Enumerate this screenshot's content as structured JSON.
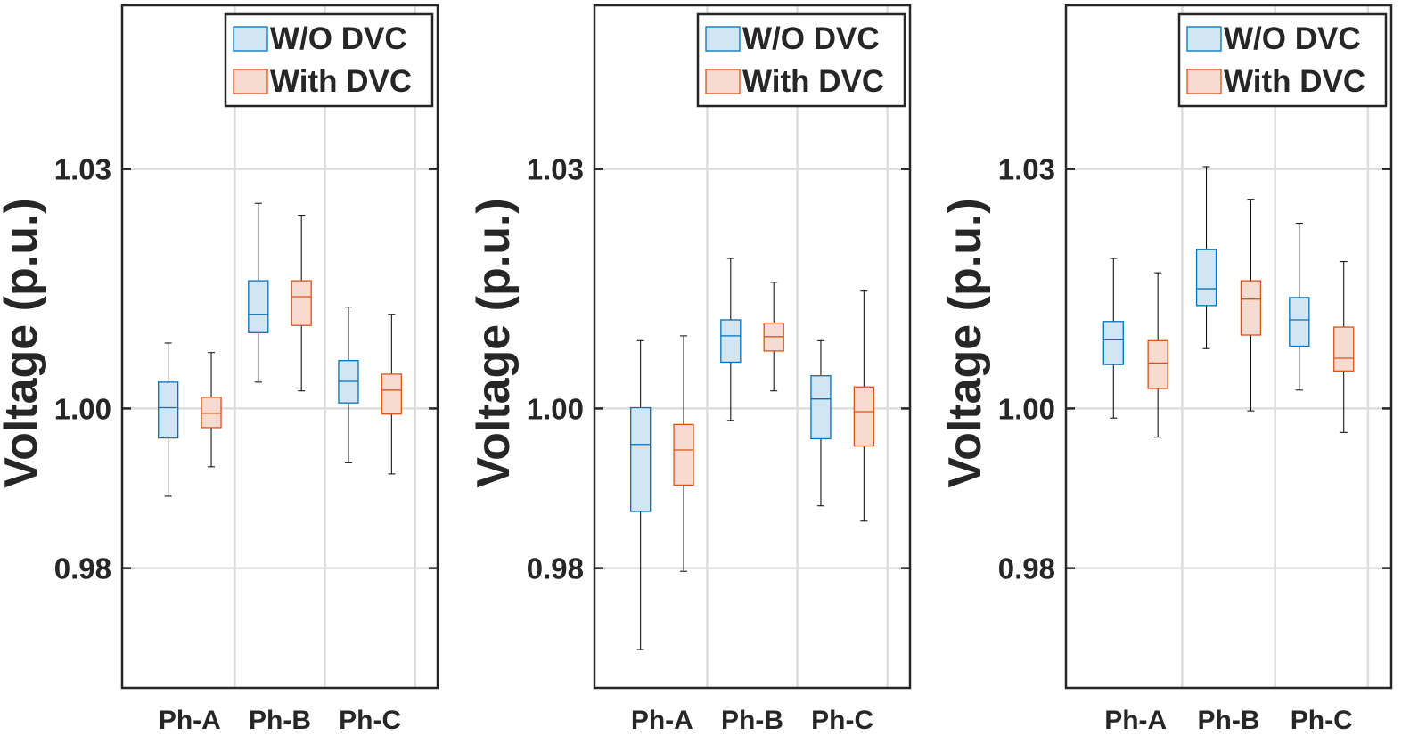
{
  "chart_data": [
    {
      "type": "box",
      "ylabel": "Voltage (p.u.)",
      "ylim": [
        0.965,
        1.0505
      ],
      "yticks": [
        0.98,
        1.0,
        1.03
      ],
      "ytick_labels": [
        "0.98",
        "1.00",
        "1.03"
      ],
      "categories": [
        "Ph-A",
        "Ph-B",
        "Ph-C"
      ],
      "grid": true,
      "legend": {
        "placement": "top-right",
        "entries": [
          "W/O DVC",
          "With DVC"
        ]
      },
      "series": [
        {
          "name": "W/O DVC",
          "boxes": [
            {
              "category": "Ph-A",
              "min": 0.989,
              "q1": 0.9963,
              "median": 1.0001,
              "q3": 1.0033,
              "max": 1.0082
            },
            {
              "category": "Ph-B",
              "min": 1.0033,
              "q1": 1.0095,
              "median": 1.0118,
              "q3": 1.016,
              "max": 1.0257
            },
            {
              "category": "Ph-C",
              "min": 0.9932,
              "q1": 1.0007,
              "median": 1.0034,
              "q3": 1.006,
              "max": 1.0127
            }
          ]
        },
        {
          "name": "With DVC",
          "boxes": [
            {
              "category": "Ph-A",
              "min": 0.9927,
              "q1": 0.9976,
              "median": 0.9994,
              "q3": 1.0014,
              "max": 1.007
            },
            {
              "category": "Ph-B",
              "min": 1.0022,
              "q1": 1.0104,
              "median": 1.014,
              "q3": 1.016,
              "max": 1.0242
            },
            {
              "category": "Ph-C",
              "min": 0.9918,
              "q1": 0.9993,
              "median": 1.0023,
              "q3": 1.0043,
              "max": 1.0118
            }
          ]
        }
      ]
    },
    {
      "type": "box",
      "ylabel": "Voltage (p.u.)",
      "ylim": [
        0.965,
        1.0505
      ],
      "yticks": [
        0.98,
        1.0,
        1.03
      ],
      "ytick_labels": [
        "0.98",
        "1.00",
        "1.03"
      ],
      "categories": [
        "Ph-A",
        "Ph-B",
        "Ph-C"
      ],
      "grid": true,
      "legend": {
        "placement": "top-right",
        "entries": [
          "W/O DVC",
          "With DVC"
        ]
      },
      "series": [
        {
          "name": "W/O DVC",
          "boxes": [
            {
              "category": "Ph-A",
              "min": 0.9698,
              "q1": 0.9871,
              "median": 0.9955,
              "q3": 1.0001,
              "max": 1.0085
            },
            {
              "category": "Ph-B",
              "min": 0.9985,
              "q1": 1.0058,
              "median": 1.0091,
              "q3": 1.0111,
              "max": 1.0188
            },
            {
              "category": "Ph-C",
              "min": 0.9878,
              "q1": 0.9962,
              "median": 1.0012,
              "q3": 1.0041,
              "max": 1.0085
            }
          ]
        },
        {
          "name": "With DVC",
          "boxes": [
            {
              "category": "Ph-A",
              "min": 0.9796,
              "q1": 0.9904,
              "median": 0.9948,
              "q3": 0.998,
              "max": 1.0091
            },
            {
              "category": "Ph-B",
              "min": 1.0022,
              "q1": 1.0072,
              "median": 1.009,
              "q3": 1.0107,
              "max": 1.0158
            },
            {
              "category": "Ph-C",
              "min": 0.9859,
              "q1": 0.9953,
              "median": 0.9996,
              "q3": 1.0027,
              "max": 1.0147
            }
          ]
        }
      ]
    },
    {
      "type": "box",
      "ylabel": "Voltage (p.u.)",
      "ylim": [
        0.965,
        1.0505
      ],
      "yticks": [
        0.98,
        1.0,
        1.03
      ],
      "ytick_labels": [
        "0.98",
        "1.00",
        "1.03"
      ],
      "categories": [
        "Ph-A",
        "Ph-B",
        "Ph-C"
      ],
      "grid": true,
      "legend": {
        "placement": "top-right",
        "entries": [
          "W/O DVC",
          "With DVC"
        ]
      },
      "series": [
        {
          "name": "W/O DVC",
          "boxes": [
            {
              "category": "Ph-A",
              "min": 0.9988,
              "q1": 1.0055,
              "median": 1.0086,
              "q3": 1.0109,
              "max": 1.0188
            },
            {
              "category": "Ph-B",
              "min": 1.0075,
              "q1": 1.0129,
              "median": 1.015,
              "q3": 1.0199,
              "max": 1.0303
            },
            {
              "category": "Ph-C",
              "min": 1.0023,
              "q1": 1.0078,
              "median": 1.0111,
              "q3": 1.0139,
              "max": 1.0232
            }
          ]
        },
        {
          "name": "With DVC",
          "boxes": [
            {
              "category": "Ph-A",
              "min": 0.9964,
              "q1": 1.0025,
              "median": 1.0057,
              "q3": 1.0085,
              "max": 1.017
            },
            {
              "category": "Ph-B",
              "min": 0.9997,
              "q1": 1.0092,
              "median": 1.0137,
              "q3": 1.016,
              "max": 1.0262
            },
            {
              "category": "Ph-C",
              "min": 0.997,
              "q1": 1.0047,
              "median": 1.0063,
              "q3": 1.0102,
              "max": 1.0184
            }
          ]
        }
      ]
    }
  ],
  "colors": {
    "wo_dvc_edge": "#0072BD",
    "wo_dvc_fill": "#D0E6F3",
    "with_dvc_edge": "#D95319",
    "with_dvc_fill": "#F7DBD0",
    "axis": "#262626",
    "grid": "#DDDDDD",
    "whisker": "#000000"
  }
}
